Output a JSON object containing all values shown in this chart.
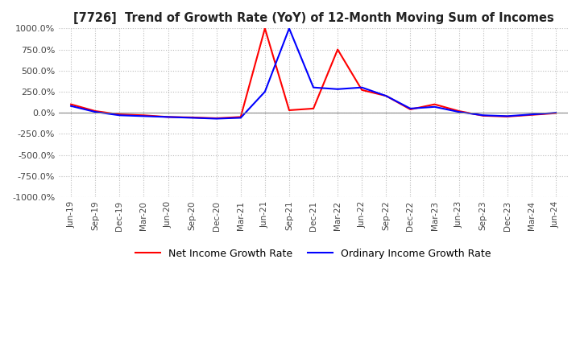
{
  "title": "[7726]  Trend of Growth Rate (YoY) of 12-Month Moving Sum of Incomes",
  "ylim": [
    -1000,
    1000
  ],
  "yticks": [
    -1000,
    -750,
    -500,
    -250,
    0,
    250,
    500,
    750,
    1000
  ],
  "ytick_labels": [
    "-1000.0%",
    "-750.0%",
    "-500.0%",
    "-250.0%",
    "0.0%",
    "250.0%",
    "500.0%",
    "750.0%",
    "1000.0%"
  ],
  "legend": [
    "Ordinary Income Growth Rate",
    "Net Income Growth Rate"
  ],
  "line_colors": [
    "#0000FF",
    "#FF0000"
  ],
  "background_color": "#FFFFFF",
  "grid_color": "#BBBBBB",
  "x_labels": [
    "Jun-19",
    "Sep-19",
    "Dec-19",
    "Mar-20",
    "Jun-20",
    "Sep-20",
    "Dec-20",
    "Mar-21",
    "Jun-21",
    "Sep-21",
    "Dec-21",
    "Mar-22",
    "Jun-22",
    "Sep-22",
    "Dec-22",
    "Mar-23",
    "Jun-23",
    "Sep-23",
    "Dec-23",
    "Mar-24",
    "Jun-24"
  ],
  "ordinary_income": [
    80,
    10,
    -30,
    -40,
    -50,
    -60,
    -70,
    -60,
    250,
    1000,
    300,
    280,
    300,
    200,
    50,
    70,
    10,
    -30,
    -40,
    -20,
    0
  ],
  "net_income": [
    100,
    20,
    -20,
    -30,
    -50,
    -55,
    -65,
    -50,
    1000,
    30,
    50,
    750,
    270,
    200,
    40,
    100,
    20,
    -35,
    -45,
    -25,
    -5
  ]
}
